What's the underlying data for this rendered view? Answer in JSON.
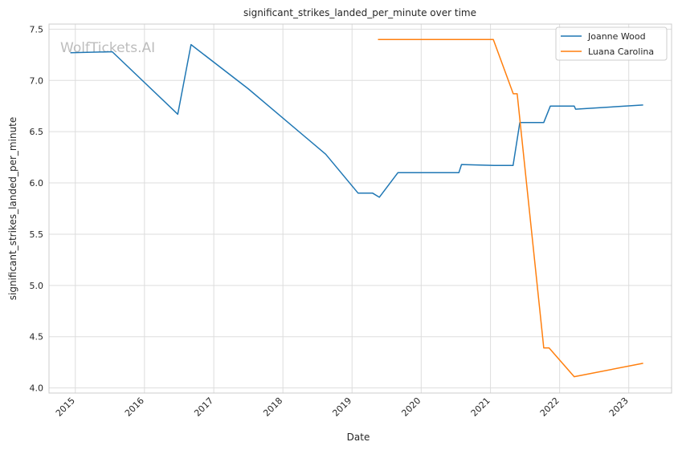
{
  "chart_data": {
    "type": "line",
    "title": "significant_strikes_landed_per_minute over time",
    "xlabel": "Date",
    "ylabel": "significant_strikes_landed_per_minute",
    "watermark": "WolfTickets.AI",
    "xlim": [
      "2014-08-15",
      "2023-08-15"
    ],
    "ylim": [
      3.95,
      7.55
    ],
    "x_ticks": [
      "2015",
      "2016",
      "2017",
      "2018",
      "2019",
      "2020",
      "2021",
      "2022",
      "2023"
    ],
    "y_ticks": [
      "4.0",
      "4.5",
      "5.0",
      "5.5",
      "6.0",
      "6.5",
      "7.0",
      "7.5"
    ],
    "grid": true,
    "legend_position": "top-right",
    "series": [
      {
        "name": "Joanne Wood",
        "color": "#1f77b4",
        "x": [
          "2014-12-06",
          "2015-07-15",
          "2016-06-25",
          "2016-09-03",
          "2017-07-01",
          "2018-08-15",
          "2019-02-02",
          "2019-04-20",
          "2019-05-25",
          "2019-08-31",
          "2020-07-18",
          "2020-08-01",
          "2021-01-20",
          "2021-04-30",
          "2021-06-05",
          "2021-10-09",
          "2021-11-13",
          "2022-03-19",
          "2022-03-26",
          "2023-03-18"
        ],
        "y": [
          7.27,
          7.28,
          6.67,
          7.35,
          6.92,
          6.28,
          5.9,
          5.9,
          5.86,
          6.1,
          6.1,
          6.18,
          6.17,
          6.17,
          6.59,
          6.59,
          6.75,
          6.75,
          6.72,
          6.76
        ]
      },
      {
        "name": "Luana Carolina",
        "color": "#ff7f0e",
        "x": [
          "2019-05-18",
          "2021-01-16",
          "2021-05-01",
          "2021-05-22",
          "2021-10-09",
          "2021-11-06",
          "2022-03-19",
          "2023-03-18"
        ],
        "y": [
          7.4,
          7.4,
          6.87,
          6.87,
          4.39,
          4.39,
          4.11,
          4.24
        ]
      }
    ]
  }
}
